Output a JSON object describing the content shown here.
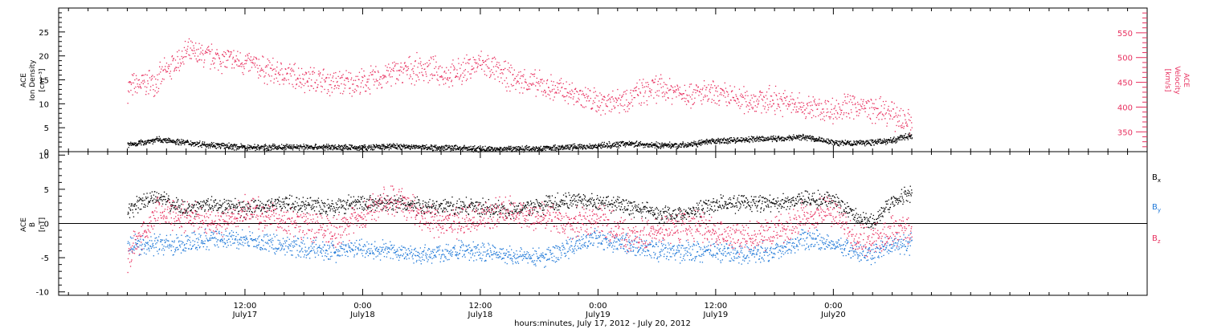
{
  "chart_data": [
    {
      "type": "scatter",
      "panel": "top",
      "left_axis_label_lines": [
        "ACE",
        "Ion Density",
        "[cm⁻³]"
      ],
      "right_axis_label_lines": [
        "ACE",
        "Velocity",
        "[km/s]"
      ],
      "ylim_left": [
        0,
        30
      ],
      "yticks_left": [
        "0",
        "5",
        "10",
        "15",
        "20",
        "25"
      ],
      "yticks_left_values": [
        0,
        5,
        10,
        15,
        20,
        25
      ],
      "ylim_right": [
        310,
        600
      ],
      "yticks_right": [
        "350",
        "400",
        "450",
        "500",
        "550"
      ],
      "yticks_right_values": [
        350,
        400,
        450,
        500,
        550
      ],
      "series": [
        {
          "axis": "left",
          "color": "#000000",
          "x_hours": [
            0,
            3,
            6,
            9,
            12,
            15,
            18,
            21,
            24,
            27,
            30,
            33,
            36,
            39,
            42,
            45,
            48,
            51,
            54,
            57,
            60,
            63,
            66,
            69,
            72,
            74,
            76,
            78,
            80
          ],
          "values": [
            1.5,
            2.6,
            2.0,
            1.4,
            1.0,
            1.0,
            1.1,
            1.0,
            0.9,
            1.2,
            1.0,
            0.9,
            0.6,
            0.7,
            0.8,
            1.0,
            1.3,
            1.8,
            1.4,
            1.5,
            2.3,
            2.6,
            2.8,
            3.2,
            2.0,
            1.8,
            2.1,
            2.4,
            3.5
          ]
        },
        {
          "axis": "right",
          "color": "#e8305f",
          "x_hours": [
            0,
            3,
            6,
            9,
            12,
            15,
            18,
            21,
            24,
            27,
            30,
            33,
            36,
            39,
            42,
            45,
            48,
            51,
            54,
            57,
            60,
            63,
            66,
            69,
            72,
            74,
            76,
            78,
            80
          ],
          "values": [
            440,
            455,
            510,
            500,
            490,
            470,
            460,
            450,
            450,
            470,
            480,
            465,
            490,
            460,
            445,
            430,
            410,
            420,
            440,
            430,
            425,
            415,
            415,
            400,
            395,
            405,
            395,
            385,
            370
          ]
        }
      ]
    },
    {
      "type": "scatter",
      "panel": "bottom",
      "left_axis_label_lines": [
        "ACE",
        "B",
        "[nT]"
      ],
      "ylim": [
        -10.5,
        10.5
      ],
      "yticks": [
        "-10",
        "-5",
        "0",
        "5",
        "10"
      ],
      "yticks_values": [
        -10,
        -5,
        0,
        5,
        10
      ],
      "legend_position": "right",
      "series": [
        {
          "name": "Bx",
          "color": "#000000",
          "x_hours": [
            0,
            3,
            6,
            9,
            12,
            15,
            18,
            21,
            24,
            27,
            30,
            33,
            36,
            39,
            42,
            45,
            48,
            51,
            54,
            57,
            60,
            63,
            66,
            69,
            72,
            74,
            76,
            78,
            80
          ],
          "values": [
            2,
            4,
            2,
            3,
            2,
            3,
            3,
            2.5,
            3,
            3,
            2.5,
            2.5,
            2.5,
            2,
            2.5,
            3.5,
            3,
            2.5,
            1.5,
            1.5,
            3,
            3,
            3,
            3.5,
            3.5,
            1.5,
            0,
            3.5,
            4.5
          ]
        },
        {
          "name": "By",
          "color": "#2079d8",
          "x_hours": [
            0,
            3,
            6,
            9,
            12,
            15,
            18,
            21,
            24,
            27,
            30,
            33,
            36,
            39,
            42,
            45,
            48,
            51,
            54,
            57,
            60,
            63,
            66,
            69,
            72,
            74,
            76,
            78,
            80
          ],
          "values": [
            -3,
            -3,
            -3,
            -2,
            -2.5,
            -3,
            -3.5,
            -4,
            -3.5,
            -4,
            -4.5,
            -4,
            -4,
            -4.5,
            -5,
            -3.5,
            -2,
            -3,
            -4,
            -4,
            -4,
            -4.5,
            -4,
            -2,
            -3,
            -4,
            -4.5,
            -3,
            -3
          ]
        },
        {
          "name": "Bz",
          "color": "#e8305f",
          "x_hours": [
            0,
            3,
            6,
            9,
            12,
            15,
            18,
            21,
            24,
            27,
            30,
            33,
            36,
            39,
            42,
            45,
            48,
            51,
            54,
            57,
            60,
            63,
            66,
            69,
            72,
            74,
            76,
            78,
            80
          ],
          "values": [
            -5,
            2,
            1,
            0,
            2,
            1,
            0,
            -1,
            1,
            4,
            1,
            0,
            1,
            2,
            1,
            0,
            1,
            -2,
            -1,
            0,
            -1,
            -2,
            -1,
            1,
            2,
            -2,
            -2.5,
            -1,
            -1
          ]
        }
      ],
      "legend": [
        {
          "base": "B",
          "sub": "x",
          "color": "#000000"
        },
        {
          "base": "B",
          "sub": "y",
          "color": "#2079d8"
        },
        {
          "base": "B",
          "sub": "z",
          "color": "#e8305f"
        }
      ]
    }
  ],
  "xaxis": {
    "range_hours": [
      -7,
      104
    ],
    "major_ticks": [
      {
        "hour": 12,
        "time": "12:00",
        "date": "July17"
      },
      {
        "hour": 24,
        "time": "0:00",
        "date": "July18"
      },
      {
        "hour": 36,
        "time": "12:00",
        "date": "July18"
      },
      {
        "hour": 48,
        "time": "0:00",
        "date": "July19"
      },
      {
        "hour": 60,
        "time": "12:00",
        "date": "July19"
      },
      {
        "hour": 72,
        "time": "0:00",
        "date": "July20"
      }
    ],
    "title": "hours:minutes, July 17, 2012 - July 20, 2012"
  },
  "colors": {
    "black": "#000000",
    "blue": "#2079d8",
    "red": "#e8305f"
  }
}
